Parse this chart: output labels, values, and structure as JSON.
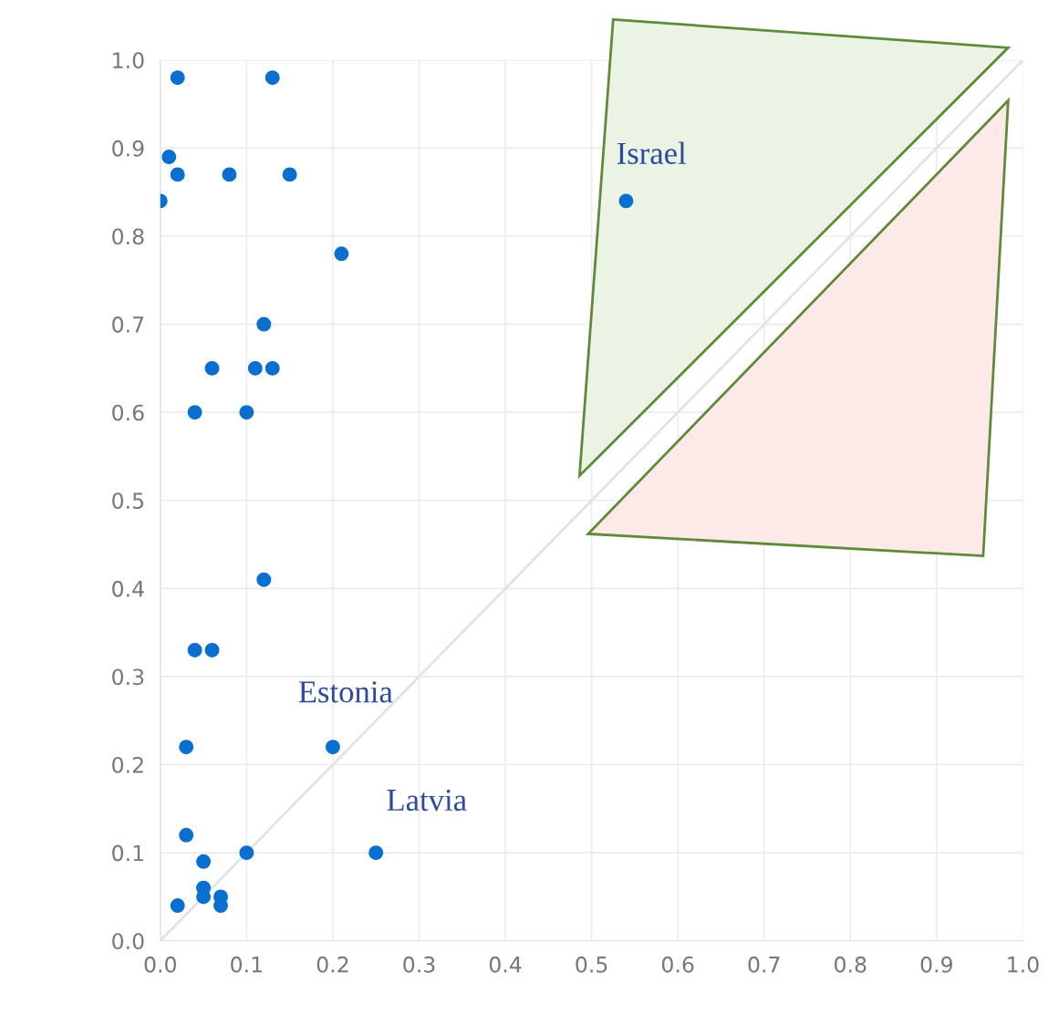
{
  "chart_data": {
    "type": "scatter",
    "series": [
      {
        "type": "line",
        "color": "#e3e3e3",
        "x": [
          0.0,
          1.0
        ],
        "values": [
          0.0,
          1.0
        ],
        "marker": "none"
      },
      {
        "color": "#0a6fcf",
        "marker": "circle",
        "x": [
          0.02,
          0.13,
          0.01,
          0.02,
          0.08,
          0.15,
          0.0,
          0.21,
          0.12,
          0.06,
          0.11,
          0.13,
          0.04,
          0.1,
          0.12,
          0.04,
          0.06,
          0.03,
          0.2,
          0.03,
          0.1,
          0.25,
          0.05,
          0.05,
          0.05,
          0.07,
          0.07,
          0.02,
          0.54
        ],
        "values": [
          0.98,
          0.98,
          0.89,
          0.87,
          0.87,
          0.87,
          0.84,
          0.78,
          0.7,
          0.65,
          0.65,
          0.65,
          0.6,
          0.6,
          0.41,
          0.33,
          0.33,
          0.22,
          0.22,
          0.12,
          0.1,
          0.1,
          0.09,
          0.06,
          0.05,
          0.05,
          0.04,
          0.04,
          0.84
        ]
      }
    ],
    "annotations": [
      {
        "text": "Israel",
        "x": 0.54,
        "y": 0.84
      },
      {
        "text": "Estonia",
        "x": 0.2,
        "y": 0.22
      },
      {
        "text": "Latvia",
        "x": 0.25,
        "y": 0.1
      }
    ],
    "xlim": [
      0.0,
      1.0
    ],
    "ylim": [
      0.0,
      1.0
    ],
    "xticks": [
      {
        "value": 0,
        "label": "0.0"
      },
      0.1,
      0.2,
      0.3,
      0.4,
      0.5,
      0.6,
      0.7,
      0.8,
      0.9,
      {
        "value": 1,
        "label": "1.0"
      }
    ],
    "yticks": [
      {
        "value": 0,
        "label": "0.0"
      },
      0.1,
      0.2,
      0.3,
      0.4,
      0.5,
      0.6,
      0.7,
      0.8,
      0.9,
      {
        "value": 1,
        "label": "1.0"
      }
    ],
    "grid": true
  }
}
